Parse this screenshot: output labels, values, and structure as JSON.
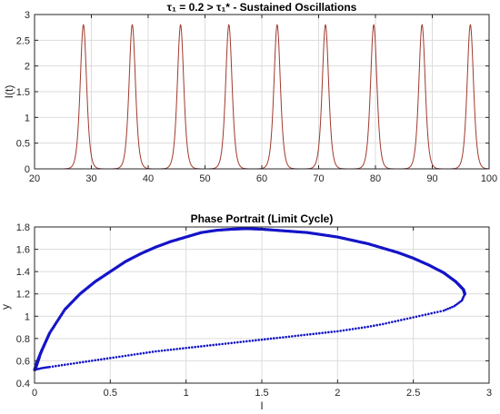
{
  "chart_data": [
    {
      "type": "line",
      "title": "τ₁ = 0.2 > τ₁* - Sustained Oscillations",
      "xlabel": "",
      "ylabel": "I(t)",
      "xlim": [
        20,
        100
      ],
      "ylim": [
        0,
        3
      ],
      "xticks": [
        20,
        30,
        40,
        50,
        60,
        70,
        80,
        90,
        100
      ],
      "yticks": [
        0,
        0.5,
        1,
        1.5,
        2,
        2.5,
        3
      ],
      "xtick_labels": [
        "20",
        "30",
        "40",
        "50",
        "60",
        "70",
        "80",
        "90",
        "100"
      ],
      "ytick_labels": [
        "0",
        "0.5",
        "1",
        "1.5",
        "2",
        "2.5",
        "3"
      ],
      "grid": true,
      "series": [
        {
          "color": "#a0392e",
          "peaks_x": [
            28.6,
            37.2,
            45.7,
            54.2,
            62.7,
            71.2,
            79.7,
            88.2,
            96.7
          ],
          "peak_y": 2.8,
          "baseline_y": 0.0
        }
      ]
    },
    {
      "type": "scatter",
      "title": "Phase Portrait (Limit Cycle)",
      "xlabel": "I",
      "ylabel": "y",
      "xlim": [
        0,
        3
      ],
      "ylim": [
        0.4,
        1.8
      ],
      "xticks": [
        0,
        0.5,
        1,
        1.5,
        2,
        2.5,
        3
      ],
      "yticks": [
        0.4,
        0.6,
        0.8,
        1,
        1.2,
        1.4,
        1.6,
        1.8
      ],
      "xtick_labels": [
        "0",
        "0.5",
        "1",
        "1.5",
        "2",
        "2.5",
        "3"
      ],
      "ytick_labels": [
        "0.4",
        "0.6",
        "0.8",
        "1",
        "1.2",
        "1.4",
        "1.6",
        "1.8"
      ],
      "grid": true,
      "series": [
        {
          "color": "#1414c8",
          "upper_branch": [
            [
              0.0,
              0.52
            ],
            [
              0.02,
              0.6
            ],
            [
              0.05,
              0.7
            ],
            [
              0.1,
              0.85
            ],
            [
              0.2,
              1.06
            ],
            [
              0.3,
              1.2
            ],
            [
              0.4,
              1.31
            ],
            [
              0.5,
              1.4
            ],
            [
              0.6,
              1.49
            ],
            [
              0.7,
              1.56
            ],
            [
              0.8,
              1.62
            ],
            [
              0.9,
              1.67
            ],
            [
              1.0,
              1.71
            ],
            [
              1.1,
              1.75
            ],
            [
              1.2,
              1.77
            ],
            [
              1.3,
              1.78
            ],
            [
              1.4,
              1.785
            ],
            [
              1.5,
              1.78
            ],
            [
              1.6,
              1.77
            ],
            [
              1.7,
              1.76
            ],
            [
              1.8,
              1.75
            ],
            [
              1.9,
              1.73
            ],
            [
              2.0,
              1.71
            ],
            [
              2.1,
              1.68
            ],
            [
              2.2,
              1.65
            ],
            [
              2.3,
              1.61
            ],
            [
              2.4,
              1.57
            ],
            [
              2.5,
              1.52
            ],
            [
              2.6,
              1.46
            ],
            [
              2.7,
              1.39
            ],
            [
              2.78,
              1.31
            ],
            [
              2.83,
              1.24
            ],
            [
              2.84,
              1.2
            ]
          ],
          "lower_branch": [
            [
              2.84,
              1.2
            ],
            [
              2.82,
              1.14
            ],
            [
              2.77,
              1.09
            ],
            [
              2.7,
              1.05
            ],
            [
              2.6,
              1.02
            ],
            [
              2.5,
              0.99
            ],
            [
              2.4,
              0.96
            ],
            [
              2.3,
              0.93
            ],
            [
              2.2,
              0.905
            ],
            [
              2.1,
              0.885
            ],
            [
              2.0,
              0.865
            ],
            [
              1.9,
              0.85
            ],
            [
              1.8,
              0.835
            ],
            [
              1.7,
              0.82
            ],
            [
              1.6,
              0.805
            ],
            [
              1.5,
              0.79
            ],
            [
              1.4,
              0.775
            ],
            [
              1.3,
              0.76
            ],
            [
              1.2,
              0.745
            ],
            [
              1.1,
              0.73
            ],
            [
              1.0,
              0.715
            ],
            [
              0.9,
              0.7
            ],
            [
              0.8,
              0.685
            ],
            [
              0.7,
              0.665
            ],
            [
              0.6,
              0.645
            ],
            [
              0.5,
              0.625
            ],
            [
              0.4,
              0.605
            ],
            [
              0.3,
              0.585
            ],
            [
              0.2,
              0.565
            ],
            [
              0.1,
              0.545
            ],
            [
              0.05,
              0.535
            ],
            [
              0.0,
              0.52
            ]
          ]
        }
      ]
    }
  ]
}
